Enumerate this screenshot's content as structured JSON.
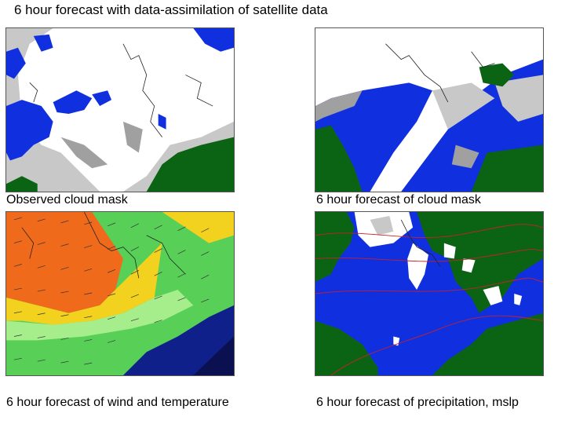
{
  "page": {
    "title": "6 hour forecast with data-assimilation of satellite data"
  },
  "panels": [
    {
      "id": "observed-cloud-mask",
      "caption": "Observed cloud mask",
      "map_icon": "cloud-mask-map-icon"
    },
    {
      "id": "forecast-cloud-mask",
      "caption": "6 hour forecast of cloud mask",
      "map_icon": "cloud-mask-map-icon"
    },
    {
      "id": "forecast-wind-temperature",
      "caption": "6 hour forecast of wind and temperature",
      "map_icon": "wind-temperature-map-icon"
    },
    {
      "id": "forecast-precipitation-mslp",
      "caption": "6 hour forecast of precipitation, mslp",
      "map_icon": "precipitation-map-icon"
    }
  ],
  "colors": {
    "sea": "#1030e0",
    "land": "#0a6414",
    "cloud_white": "#ffffff",
    "cloud_light_gray": "#c8c8c8",
    "cloud_gray": "#a0a0a0",
    "temp_warm": "#f06a1c",
    "temp_yellow": "#f2d21e",
    "temp_light_green": "#a6ee8c",
    "temp_green": "#58d058",
    "temp_deep_sea": "#10208a",
    "isobar_red": "#c8202a"
  }
}
